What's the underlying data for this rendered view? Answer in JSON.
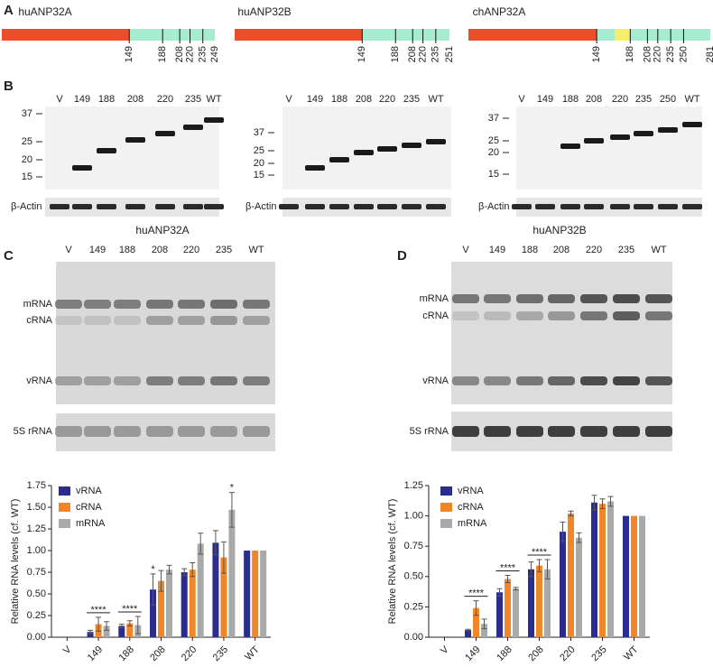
{
  "panel_labels": [
    "A",
    "B",
    "C",
    "D"
  ],
  "constructs": [
    {
      "name": "huANP32A",
      "ticks": [
        149,
        188,
        208,
        220,
        235,
        249
      ]
    },
    {
      "name": "huANP32B",
      "ticks": [
        149,
        188,
        208,
        220,
        235,
        251
      ]
    },
    {
      "name": "chANP32A",
      "ticks": [
        149,
        188,
        208,
        220,
        235,
        250,
        281
      ]
    }
  ],
  "blots": [
    {
      "lanes": [
        "V",
        "149",
        "188",
        "208",
        "220",
        "235",
        "WT"
      ],
      "markers": [
        37,
        25,
        20,
        15
      ],
      "loading": "β-Actin"
    },
    {
      "lanes": [
        "V",
        "149",
        "188",
        "208",
        "220",
        "235",
        "WT"
      ],
      "markers": [
        37,
        25,
        20,
        15
      ],
      "loading": "β-Actin"
    },
    {
      "lanes": [
        "V",
        "149",
        "188",
        "208",
        "220",
        "235",
        "250",
        "WT"
      ],
      "markers": [
        37,
        25,
        20,
        15
      ],
      "loading": "β-Actin"
    }
  ],
  "gels": [
    {
      "title": "huANP32A",
      "lanes": [
        "V",
        "149",
        "188",
        "208",
        "220",
        "235",
        "WT"
      ],
      "bands": [
        "mRNA",
        "cRNA",
        "vRNA"
      ],
      "loading": "5S rRNA"
    },
    {
      "title": "huANP32B",
      "lanes": [
        "V",
        "149",
        "188",
        "208",
        "220",
        "235",
        "WT"
      ],
      "bands": [
        "mRNA",
        "cRNA",
        "vRNA"
      ],
      "loading": "5S rRNA"
    }
  ],
  "chart_data": [
    {
      "type": "bar",
      "ylabel": "Relative RNA levels (cf. WT)",
      "categories": [
        "V",
        "149",
        "188",
        "208",
        "220",
        "235",
        "WT"
      ],
      "series": [
        {
          "name": "vRNA",
          "color": "#2b2d8e",
          "values": [
            0,
            0.06,
            0.13,
            0.55,
            0.75,
            1.09,
            1.0
          ],
          "errors": [
            null,
            0.02,
            0.02,
            0.18,
            0.04,
            0.14,
            null
          ]
        },
        {
          "name": "cRNA",
          "color": "#f0862a",
          "values": [
            0,
            0.15,
            0.16,
            0.65,
            0.78,
            0.92,
            1.0
          ],
          "errors": [
            null,
            0.08,
            0.03,
            0.12,
            0.08,
            0.18,
            null
          ]
        },
        {
          "name": "mRNA",
          "color": "#a9a9a9",
          "values": [
            0,
            0.13,
            0.14,
            0.78,
            1.08,
            1.47,
            1.0
          ],
          "errors": [
            null,
            0.05,
            0.1,
            0.05,
            0.12,
            0.2,
            null
          ]
        }
      ],
      "ylim": [
        0,
        1.75
      ],
      "yticks": [
        {
          "value": 0,
          "label": "0.00"
        },
        0.25,
        {
          "value": 0.5,
          "label": "0.50"
        },
        0.75,
        {
          "value": 1,
          "label": "1.00"
        },
        1.25,
        {
          "value": 1.5,
          "label": "1.50"
        },
        1.75
      ],
      "legend": "top-left",
      "annotations": [
        {
          "label": "****",
          "category": "149"
        },
        {
          "label": "****",
          "category": "188"
        },
        {
          "label": "*",
          "category": "208",
          "series": "vRNA"
        },
        {
          "label": "*",
          "category": "235",
          "series": "mRNA"
        }
      ]
    },
    {
      "type": "bar",
      "ylabel": "Relative RNA levels (cf. WT)",
      "categories": [
        "V",
        "149",
        "188",
        "208",
        "220",
        "235",
        "WT"
      ],
      "series": [
        {
          "name": "vRNA",
          "color": "#2b2d8e",
          "values": [
            0,
            0.06,
            0.37,
            0.56,
            0.87,
            1.11,
            1.0
          ],
          "errors": [
            null,
            0.005,
            0.03,
            0.06,
            0.08,
            0.06,
            null
          ]
        },
        {
          "name": "cRNA",
          "color": "#f0862a",
          "values": [
            0,
            0.24,
            0.48,
            0.59,
            1.02,
            1.1,
            1.0
          ],
          "errors": [
            null,
            0.06,
            0.03,
            0.05,
            0.02,
            0.04,
            null
          ]
        },
        {
          "name": "mRNA",
          "color": "#a9a9a9",
          "values": [
            0,
            0.11,
            0.4,
            0.56,
            0.82,
            1.12,
            1.0
          ],
          "errors": [
            null,
            0.04,
            0.01,
            0.08,
            0.04,
            0.04,
            null
          ]
        }
      ],
      "ylim": [
        0,
        1.25
      ],
      "yticks": [
        {
          "value": 0,
          "label": "0.00"
        },
        0.25,
        {
          "value": 0.5,
          "label": "0.50"
        },
        0.75,
        {
          "value": 1,
          "label": "1.00"
        },
        1.25
      ],
      "legend": "top-left",
      "annotations": [
        {
          "label": "****",
          "category": "149"
        },
        {
          "label": "****",
          "category": "188"
        },
        {
          "label": "****",
          "category": "208"
        }
      ]
    }
  ]
}
